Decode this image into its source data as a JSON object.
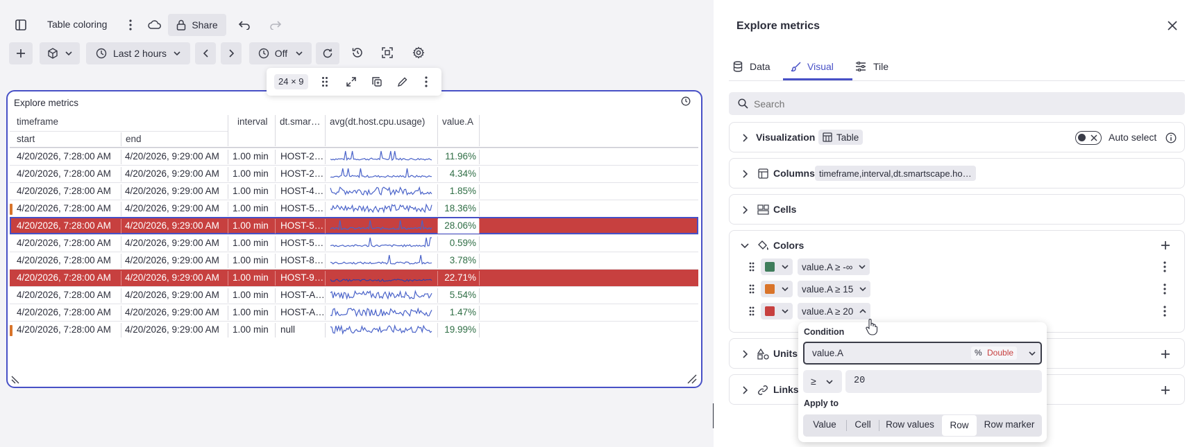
{
  "dashboard": {
    "title": "Table coloring",
    "share_label": "Share",
    "timeframe_label": "Last 2 hours",
    "refresh_label": "Off",
    "tile": {
      "title": "Explore metrics",
      "size_badge": "24 × 9"
    }
  },
  "table": {
    "group_header": "timeframe",
    "sub_headers": [
      "start",
      "end"
    ],
    "columns": [
      "interval",
      "dt.smar…",
      "avg(dt.host.cpu.usage)",
      "value.A"
    ],
    "rows": [
      {
        "start": "4/20/2026, 7:28:00 AM",
        "end": "4/20/2026, 9:29:00 AM",
        "interval": "1.00 min",
        "host": "HOST-2…",
        "value": "11.96%",
        "highlight": "none",
        "marker": false
      },
      {
        "start": "4/20/2026, 7:28:00 AM",
        "end": "4/20/2026, 9:29:00 AM",
        "interval": "1.00 min",
        "host": "HOST-2…",
        "value": "4.34%",
        "highlight": "none",
        "marker": false
      },
      {
        "start": "4/20/2026, 7:28:00 AM",
        "end": "4/20/2026, 9:29:00 AM",
        "interval": "1.00 min",
        "host": "HOST-4…",
        "value": "1.85%",
        "highlight": "none",
        "marker": false
      },
      {
        "start": "4/20/2026, 7:28:00 AM",
        "end": "4/20/2026, 9:29:00 AM",
        "interval": "1.00 min",
        "host": "HOST-5…",
        "value": "18.36%",
        "highlight": "none",
        "marker": true
      },
      {
        "start": "4/20/2026, 7:28:00 AM",
        "end": "4/20/2026, 9:29:00 AM",
        "interval": "1.00 min",
        "host": "HOST-5…",
        "value": "28.06%",
        "highlight": "row-selected",
        "marker": false
      },
      {
        "start": "4/20/2026, 7:28:00 AM",
        "end": "4/20/2026, 9:29:00 AM",
        "interval": "1.00 min",
        "host": "HOST-5…",
        "value": "0.59%",
        "highlight": "none",
        "marker": false
      },
      {
        "start": "4/20/2026, 7:28:00 AM",
        "end": "4/20/2026, 9:29:00 AM",
        "interval": "1.00 min",
        "host": "HOST-8…",
        "value": "3.78%",
        "highlight": "none",
        "marker": false
      },
      {
        "start": "4/20/2026, 7:28:00 AM",
        "end": "4/20/2026, 9:29:00 AM",
        "interval": "1.00 min",
        "host": "HOST-9…",
        "value": "22.71%",
        "highlight": "row",
        "marker": false
      },
      {
        "start": "4/20/2026, 7:28:00 AM",
        "end": "4/20/2026, 9:29:00 AM",
        "interval": "1.00 min",
        "host": "HOST-A…",
        "value": "5.54%",
        "highlight": "none",
        "marker": false
      },
      {
        "start": "4/20/2026, 7:28:00 AM",
        "end": "4/20/2026, 9:29:00 AM",
        "interval": "1.00 min",
        "host": "HOST-A…",
        "value": "1.47%",
        "highlight": "none",
        "marker": false
      },
      {
        "start": "4/20/2026, 7:28:00 AM",
        "end": "4/20/2026, 9:29:00 AM",
        "interval": "1.00 min",
        "host": "null",
        "value": "19.99%",
        "highlight": "none",
        "marker": true
      }
    ]
  },
  "panel": {
    "title": "Explore metrics",
    "tabs": [
      "Data",
      "Visual",
      "Tile"
    ],
    "active_tab": "Visual",
    "search_placeholder": "Search",
    "visualization_label": "Visualization",
    "visualization_value": "Table",
    "auto_select_label": "Auto select",
    "columns_label": "Columns",
    "columns_value": "timeframe,interval,dt.smartscape.ho…",
    "cells_label": "Cells",
    "colors_label": "Colors",
    "color_rules": [
      {
        "color": "#3f7d5b",
        "rule": "value.A ≥ -∞"
      },
      {
        "color": "#d9742a",
        "rule": "value.A ≥ 15"
      },
      {
        "color": "#c7403f",
        "rule": "value.A ≥ 20"
      }
    ],
    "units_label": "Units",
    "links_label": "Links"
  },
  "condition_popup": {
    "condition_label": "Condition",
    "field_value": "value.A",
    "type_symbol": "%",
    "type_label": "Double",
    "operator": "≥",
    "threshold": "20",
    "apply_to_label": "Apply to",
    "apply_options": [
      "Value",
      "Cell",
      "Row values",
      "Row",
      "Row marker"
    ],
    "apply_selected": "Row"
  },
  "colors": {
    "accent": "#4750c6",
    "highlight_red": "#c7403f",
    "marker_orange": "#d9742a",
    "value_green": "#2f6e45",
    "sparkline": "#4a63c9"
  }
}
